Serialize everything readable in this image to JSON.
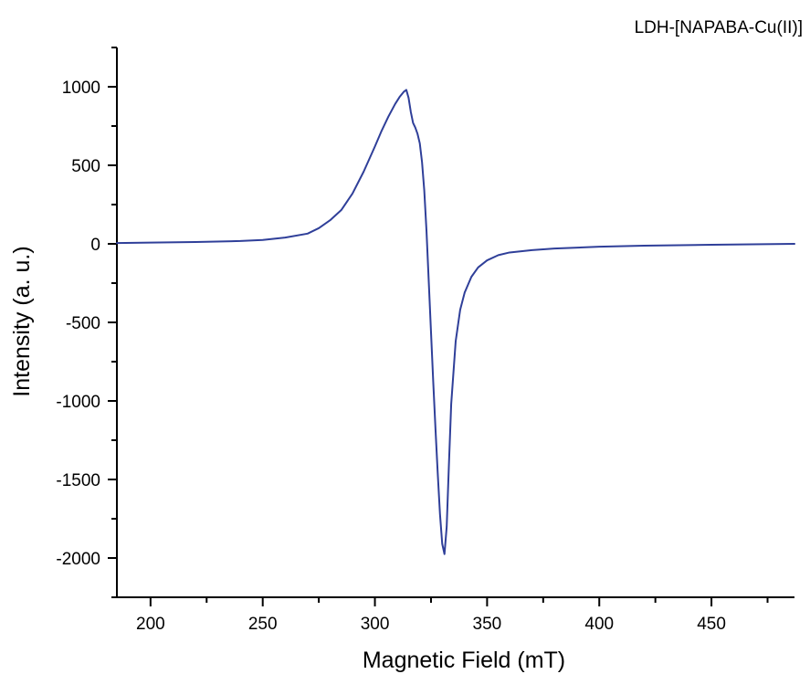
{
  "chart_data": {
    "type": "line",
    "title": "LDH-[NAPABA-Cu(II)]",
    "xlabel": "Magnetic Field (mT)",
    "ylabel": "Intensity (a. u.)",
    "xlim": [
      185,
      487
    ],
    "ylim": [
      -2250,
      1250
    ],
    "xticks": [
      200,
      250,
      300,
      350,
      400,
      450
    ],
    "yticks": [
      1000,
      500,
      0,
      -500,
      -1000,
      -1500,
      -2000
    ],
    "grid": false,
    "colors": {
      "line": "#2f3f99",
      "axis": "#000000"
    },
    "series": [
      {
        "name": "",
        "x": [
          185,
          200,
          220,
          240,
          250,
          260,
          270,
          275,
          280,
          285,
          290,
          295,
          300,
          303,
          306,
          309,
          311,
          313,
          314,
          315,
          316,
          317,
          318,
          319,
          320,
          321,
          322,
          323,
          324,
          325,
          326,
          327,
          328,
          329,
          330,
          331,
          332,
          333,
          334,
          336,
          338,
          340,
          343,
          346,
          350,
          355,
          360,
          370,
          380,
          400,
          420,
          450,
          487
        ],
        "y": [
          5,
          8,
          12,
          18,
          25,
          40,
          65,
          100,
          150,
          215,
          320,
          460,
          620,
          720,
          810,
          890,
          935,
          970,
          980,
          930,
          840,
          770,
          740,
          700,
          640,
          520,
          340,
          80,
          -240,
          -560,
          -880,
          -1180,
          -1460,
          -1720,
          -1910,
          -1975,
          -1800,
          -1400,
          -1020,
          -620,
          -420,
          -310,
          -210,
          -150,
          -105,
          -72,
          -55,
          -40,
          -30,
          -18,
          -12,
          -6,
          0
        ]
      }
    ]
  }
}
